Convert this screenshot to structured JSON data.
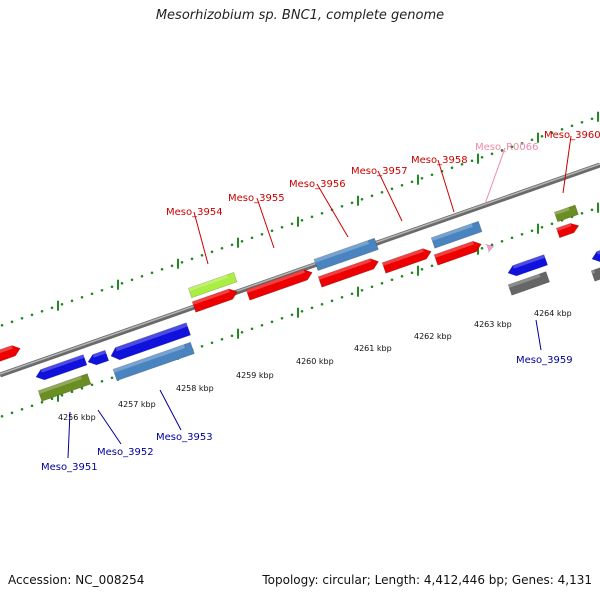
{
  "title": "Mesorhizobium sp. BNC1, complete genome",
  "footer": {
    "accession": "Accession: NC_008254",
    "summary": "Topology: circular; Length: 4,412,446 bp; Genes: 4,131"
  },
  "colors": {
    "backbone": "#808080",
    "top_label": "#cc0000",
    "bottom_label": "#000099",
    "rna_label": "#ee88aa",
    "ticks": "#228822"
  },
  "scale_labels": [
    "4256 kbp",
    "4257 kbp",
    "4258 kbp",
    "4259 kbp",
    "4260 kbp",
    "4261 kbp",
    "4262 kbp",
    "4263 kbp",
    "4264 kbp"
  ],
  "top_labels": [
    "Meso_3954",
    "Meso_3955",
    "Meso_3956",
    "Meso_3957",
    "Meso_3958",
    "Meso_R0066",
    "Meso_3960"
  ],
  "bottom_labels": [
    "Meso_3951",
    "Meso_3952",
    "Meso_3953",
    "Meso_3959"
  ]
}
